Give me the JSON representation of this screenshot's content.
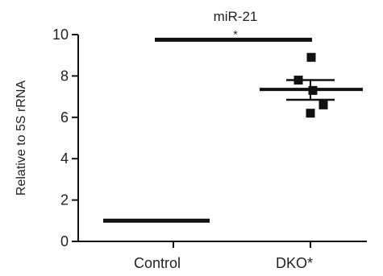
{
  "chart_data": {
    "type": "scatter",
    "title": "miR-21",
    "ylabel": "Relative to 5S rRNA",
    "xlabel": "",
    "categories": [
      "Control",
      "DKO*"
    ],
    "ylim": [
      0,
      10
    ],
    "yticks": [
      0,
      2,
      4,
      6,
      8,
      10
    ],
    "grid": false,
    "groups": [
      {
        "category": "Control",
        "points": [
          1.0,
          1.0,
          1.0,
          1.0,
          1.0
        ],
        "mean": 1.0,
        "error_low": 1.0,
        "error_high": 1.0
      },
      {
        "category": "DKO*",
        "points": [
          8.9,
          7.8,
          7.3,
          6.6,
          6.2
        ],
        "mean": 7.35,
        "error_low": 6.85,
        "error_high": 7.8
      }
    ],
    "significance": {
      "from": "Control",
      "to": "DKO*",
      "y": 9.75,
      "label": "*"
    },
    "colors": {
      "ink": "#111111"
    }
  }
}
